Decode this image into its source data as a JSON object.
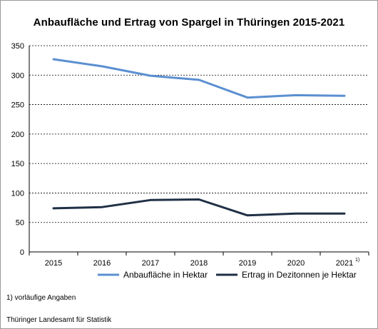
{
  "chart_data": {
    "type": "line",
    "title": "Anbaufläche und Ertrag von Spargel in Thüringen 2015-2021",
    "categories": [
      "2015",
      "2016",
      "2017",
      "2018",
      "2019",
      "2020",
      "2021"
    ],
    "last_category_marker": "1)",
    "series": [
      {
        "name": "Anbaufläche in Hektar",
        "color": "#5b8fd1",
        "values": [
          327,
          315,
          299,
          292,
          262,
          266,
          265
        ]
      },
      {
        "name": "Ertrag in Dezitonnen je Hektar",
        "color": "#1f2f45",
        "values": [
          74,
          76,
          88,
          89,
          62,
          65,
          65
        ]
      }
    ],
    "yticks": [
      "0",
      "50",
      "100",
      "150",
      "200",
      "250",
      "300",
      "350"
    ],
    "ylim": [
      0,
      350
    ],
    "grid": "horizontal dashed",
    "legend": "bottom"
  },
  "footnote": "1) vorläufige Angaben",
  "source": "Thüringer Landesamt für Statistik"
}
